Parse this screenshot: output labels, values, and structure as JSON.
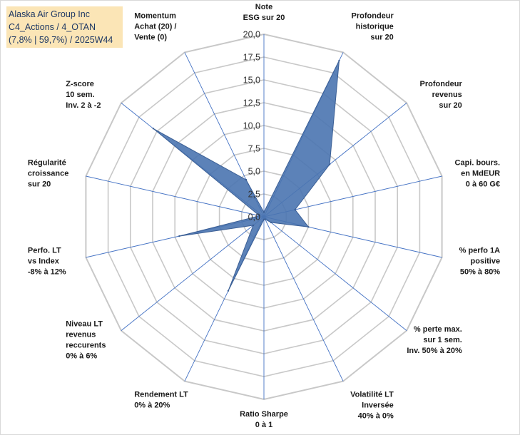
{
  "title": {
    "line1": "Alaska Air Group Inc",
    "line2": "C4_Actions / 4_OTAN",
    "line3": "(7,8% | 59,7%) / 2025W44"
  },
  "colors": {
    "fill": "#4a74b0",
    "stroke": "#3b5f95",
    "grid": "#c8c8c8",
    "spoke": "#4472c4",
    "titleBg": "#fbe5b6",
    "titleText": "#1f3864"
  },
  "chart_data": {
    "type": "radar",
    "rmin": 0,
    "rmax": 20,
    "ticks": [
      "0,0",
      "2,5",
      "5,0",
      "7,5",
      "10,0",
      "12,5",
      "15,0",
      "17,5",
      "20,0"
    ],
    "categories": [
      {
        "lines": [
          "Note",
          "ESG sur 20"
        ]
      },
      {
        "lines": [
          "Profondeur",
          "historique",
          "sur 20"
        ]
      },
      {
        "lines": [
          "Profondeur",
          "revenus",
          "sur 20"
        ]
      },
      {
        "lines": [
          "Capi. bours.",
          "en MdEUR",
          "0 à 60 G€"
        ]
      },
      {
        "lines": [
          "% perfo 1A",
          "positive",
          "50% à 80%"
        ]
      },
      {
        "lines": [
          "% perte max.",
          "sur 1 sem.",
          "Inv. 50% à 20%"
        ]
      },
      {
        "lines": [
          "Volatilité LT",
          "Inversée",
          "40% à 0%"
        ]
      },
      {
        "lines": [
          "Ratio Sharpe",
          "0 à 1"
        ]
      },
      {
        "lines": [
          "Rendement LT",
          "0% à 20%"
        ]
      },
      {
        "lines": [
          "Niveau LT",
          "revenus",
          "reccurents",
          "0% à 6%"
        ]
      },
      {
        "lines": [
          "Perfo. LT",
          "vs Index",
          "-8% à 12%"
        ]
      },
      {
        "lines": [
          "Régularité",
          "croissance",
          "sur 20"
        ]
      },
      {
        "lines": [
          "Z-score",
          "10 sem.",
          "Inv. 2 à -2"
        ]
      },
      {
        "lines": [
          "Momentum",
          "Achat (20) /",
          "Vente (0)"
        ]
      }
    ],
    "series": [
      {
        "name": "Alaska Air Group Inc",
        "values": [
          0.5,
          19.0,
          9.2,
          3.5,
          5.0,
          1.0,
          0.3,
          0.3,
          9.0,
          1.5,
          9.5,
          0.5,
          15.5,
          4.5
        ]
      }
    ]
  }
}
